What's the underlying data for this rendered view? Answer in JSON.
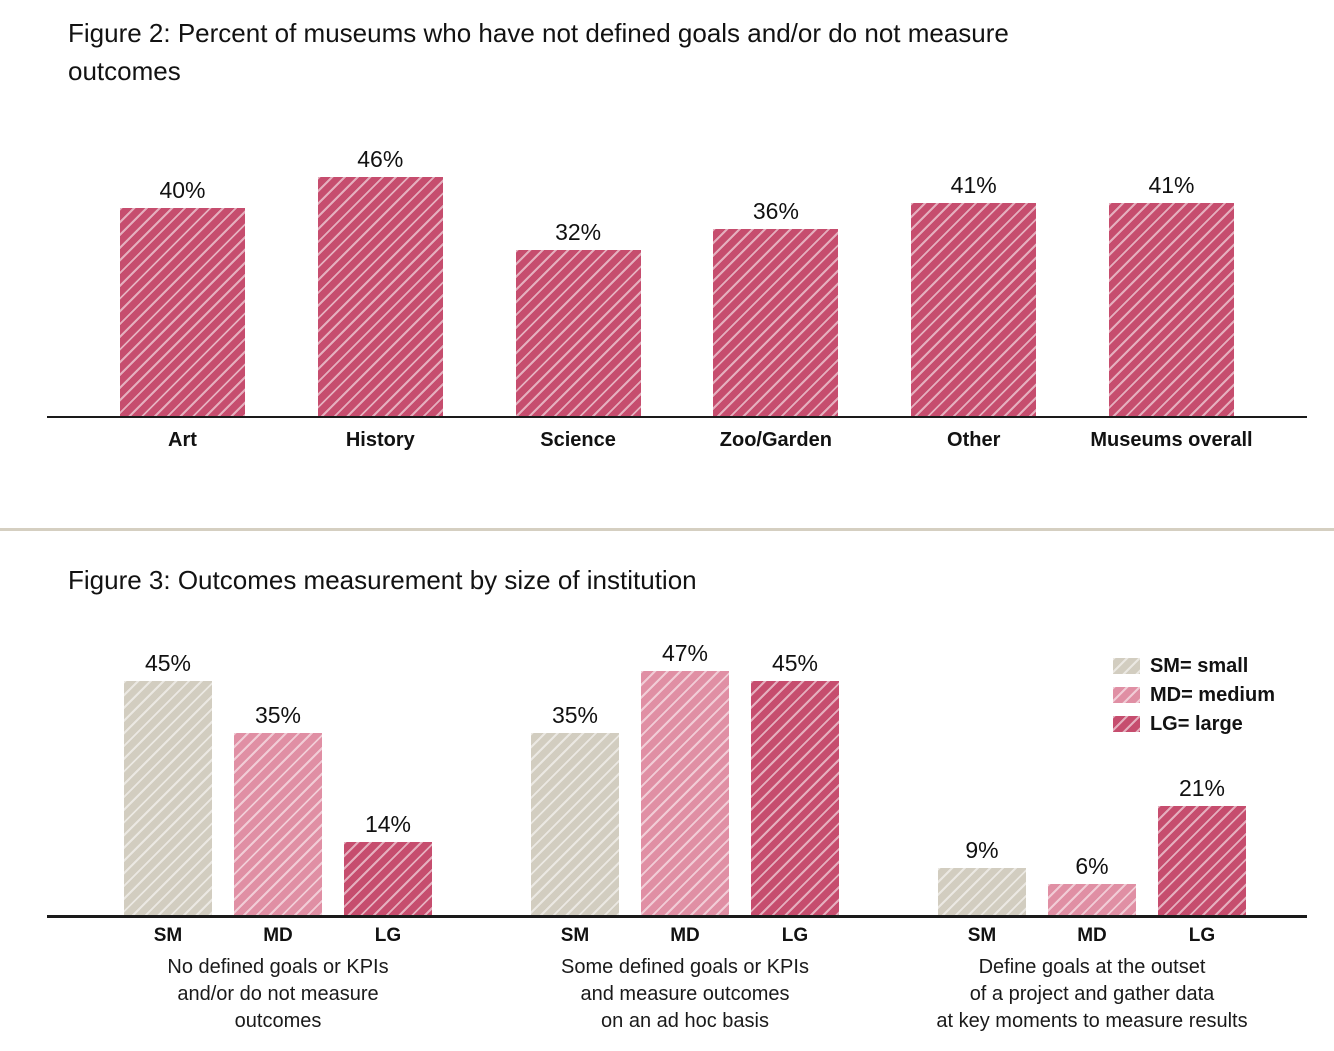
{
  "colors": {
    "axis": "#1a1a1a",
    "divider": "#d5cfc1",
    "sm_fill": "#d2cdc0",
    "md_fill": "#e08fa4",
    "lg_fill": "#c64d6e"
  },
  "chart_data": [
    {
      "id": "figure2",
      "type": "bar",
      "title": "Figure 2: Percent of museums who have not defined goals and/or do not measure\noutcomes",
      "categories": [
        "Art",
        "History",
        "Science",
        "Zoo/Garden",
        "Other",
        "Museums overall"
      ],
      "values": [
        40,
        46,
        32,
        36,
        41,
        41
      ],
      "data_labels": [
        "40%",
        "46%",
        "32%",
        "36%",
        "41%",
        "41%"
      ],
      "unit": "percent",
      "ylim": [
        0,
        50
      ],
      "grid": false,
      "legend": null,
      "bar_style": {
        "fill": "#c64d6e",
        "hatch": "diagonal-white"
      }
    },
    {
      "id": "figure3",
      "type": "bar",
      "title": "Figure 3: Outcomes measurement by size of institution",
      "group_captions": [
        "No defined goals or KPIs\nand/or do not measure\noutcomes",
        "Some defined goals or KPIs\nand measure outcomes\non an ad hoc basis",
        "Define goals at the outset\nof a project and gather data\nat key moments to measure results"
      ],
      "bar_categories": [
        "SM",
        "MD",
        "LG"
      ],
      "series": [
        {
          "name": "SM",
          "legend": "SM= small",
          "fill": "#d2cdc0",
          "values": [
            45,
            35,
            9
          ],
          "data_labels": [
            "45%",
            "35%",
            "9%"
          ]
        },
        {
          "name": "MD",
          "legend": "MD= medium",
          "fill": "#e08fa4",
          "values": [
            35,
            47,
            6
          ],
          "data_labels": [
            "35%",
            "47%",
            "6%"
          ]
        },
        {
          "name": "LG",
          "legend": "LG= large",
          "fill": "#c64d6e",
          "values": [
            14,
            45,
            21
          ],
          "data_labels": [
            "14%",
            "45%",
            "21%"
          ]
        }
      ],
      "unit": "percent",
      "ylim": [
        0,
        50
      ],
      "grid": false,
      "legend_position": "top-right",
      "hatch": "diagonal-white"
    }
  ]
}
